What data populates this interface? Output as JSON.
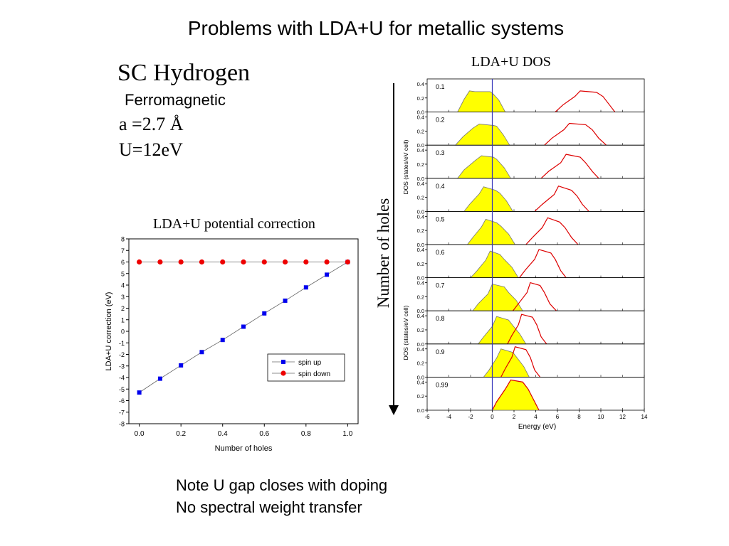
{
  "slide": {
    "title": "Problems with LDA+U for metallic systems",
    "system_name": "SC Hydrogen",
    "magnetism": "Ferromagnetic",
    "lattice": "a =2.7 Å",
    "u_value": "U=12eV",
    "holes_arrow_label": "Number of holes",
    "notes": [
      "Note U gap closes with doping",
      "No spectral weight transfer"
    ]
  },
  "chart_data": [
    {
      "type": "scatter",
      "title": "LDA+U potential correction",
      "xlabel": "Number of holes",
      "ylabel": "LDA+U correction (eV)",
      "xlim": [
        -0.05,
        1.05
      ],
      "ylim": [
        -8,
        8
      ],
      "xticks": [
        "0.0",
        "0.2",
        "0.4",
        "0.6",
        "0.8",
        "1.0"
      ],
      "yticks": [
        "-8",
        "-7",
        "-6",
        "-5",
        "-4",
        "-3",
        "-2",
        "-1",
        "0",
        "1",
        "2",
        "3",
        "4",
        "5",
        "6",
        "7",
        "8"
      ],
      "x": [
        0.0,
        0.1,
        0.2,
        0.3,
        0.4,
        0.5,
        0.6,
        0.7,
        0.8,
        0.9,
        1.0
      ],
      "series": [
        {
          "name": "spin up",
          "color": "#0000ee",
          "marker": "square",
          "values": [
            -5.3,
            -4.1,
            -2.95,
            -1.8,
            -0.75,
            0.4,
            1.55,
            2.65,
            3.8,
            4.9,
            6.0
          ]
        },
        {
          "name": "spin down",
          "color": "#ee0000",
          "marker": "circle",
          "values": [
            6.0,
            6.0,
            6.0,
            6.0,
            6.0,
            6.0,
            6.0,
            6.0,
            6.0,
            6.0,
            6.0
          ]
        }
      ],
      "legend": "lower-right"
    },
    {
      "type": "area",
      "title": "LDA+U DOS",
      "xlabel": "Energy (eV)",
      "ylabel": "DOS (states/eV cell)",
      "xlim": [
        -6,
        14
      ],
      "ylim": [
        0,
        0.45
      ],
      "xticks": [
        -6,
        -4,
        -2,
        0,
        2,
        4,
        6,
        8,
        10,
        12,
        14
      ],
      "yticks": [
        "0.0",
        "0.2",
        "0.4"
      ],
      "fermi_level": 0,
      "colors": {
        "occupied_fill": "#ffff00",
        "unoccupied_line": "#dd0000",
        "fermi_line": "#3333bb"
      },
      "panels": [
        {
          "label": "0.1",
          "occupied": [
            [
              -3.2,
              0
            ],
            [
              -2.6,
              0.18
            ],
            [
              -2.1,
              0.3
            ],
            [
              -1.6,
              0.29
            ],
            [
              -0.2,
              0.29
            ],
            [
              0,
              0.27
            ],
            [
              0.6,
              0.17
            ],
            [
              1.2,
              0
            ]
          ],
          "unoccupied": [
            [
              5.8,
              0
            ],
            [
              6.5,
              0.1
            ],
            [
              7.6,
              0.22
            ],
            [
              8.1,
              0.3
            ],
            [
              9.6,
              0.28
            ],
            [
              10.2,
              0.22
            ],
            [
              10.8,
              0.1
            ],
            [
              11.3,
              0
            ]
          ]
        },
        {
          "label": "0.2",
          "occupied": [
            [
              -3.4,
              0
            ],
            [
              -2.7,
              0.12
            ],
            [
              -1.8,
              0.24
            ],
            [
              -1.2,
              0.3
            ],
            [
              0.1,
              0.28
            ],
            [
              0.4,
              0.27
            ],
            [
              1,
              0.15
            ],
            [
              1.6,
              0
            ]
          ],
          "unoccupied": [
            [
              4.8,
              0
            ],
            [
              5.5,
              0.1
            ],
            [
              6.6,
              0.22
            ],
            [
              7.1,
              0.31
            ],
            [
              8.6,
              0.29
            ],
            [
              9.2,
              0.22
            ],
            [
              9.8,
              0.1
            ],
            [
              10.5,
              0
            ]
          ]
        },
        {
          "label": "0.3",
          "occupied": [
            [
              -3.2,
              0
            ],
            [
              -2.6,
              0.12
            ],
            [
              -1.6,
              0.25
            ],
            [
              -1,
              0.32
            ],
            [
              0.1,
              0.3
            ],
            [
              0.4,
              0.27
            ],
            [
              1.1,
              0.15
            ],
            [
              1.7,
              0
            ]
          ],
          "unoccupied": [
            [
              4.5,
              0
            ],
            [
              5.2,
              0.1
            ],
            [
              6.3,
              0.22
            ],
            [
              6.8,
              0.34
            ],
            [
              8.1,
              0.3
            ],
            [
              8.6,
              0.22
            ],
            [
              9.2,
              0.1
            ],
            [
              9.8,
              0
            ]
          ]
        },
        {
          "label": "0.4",
          "occupied": [
            [
              -2.6,
              0
            ],
            [
              -2.1,
              0.1
            ],
            [
              -1.2,
              0.25
            ],
            [
              -0.8,
              0.35
            ],
            [
              0.3,
              0.3
            ],
            [
              0.7,
              0.26
            ],
            [
              1.3,
              0.15
            ],
            [
              1.9,
              0
            ]
          ],
          "unoccupied": [
            [
              3.9,
              0
            ],
            [
              4.6,
              0.1
            ],
            [
              5.7,
              0.24
            ],
            [
              6.1,
              0.36
            ],
            [
              7.3,
              0.3
            ],
            [
              7.8,
              0.22
            ],
            [
              8.3,
              0.1
            ],
            [
              8.9,
              0
            ]
          ]
        },
        {
          "label": "0.5",
          "occupied": [
            [
              -2.3,
              0
            ],
            [
              -1.8,
              0.1
            ],
            [
              -1,
              0.25
            ],
            [
              -0.6,
              0.36
            ],
            [
              0.4,
              0.31
            ],
            [
              0.8,
              0.26
            ],
            [
              1.5,
              0.15
            ],
            [
              2.1,
              0
            ]
          ],
          "unoccupied": [
            [
              3.1,
              0
            ],
            [
              3.7,
              0.1
            ],
            [
              4.6,
              0.24
            ],
            [
              5.1,
              0.38
            ],
            [
              6.2,
              0.32
            ],
            [
              6.7,
              0.24
            ],
            [
              7.3,
              0.1
            ],
            [
              7.9,
              0
            ]
          ]
        },
        {
          "label": "0.6",
          "occupied": [
            [
              -2,
              0
            ],
            [
              -1.4,
              0.1
            ],
            [
              -0.6,
              0.25
            ],
            [
              -0.2,
              0.38
            ],
            [
              0.7,
              0.33
            ],
            [
              1.1,
              0.26
            ],
            [
              1.8,
              0.15
            ],
            [
              2.4,
              0
            ]
          ],
          "unoccupied": [
            [
              2.5,
              0
            ],
            [
              3.1,
              0.12
            ],
            [
              3.9,
              0.26
            ],
            [
              4.3,
              0.4
            ],
            [
              5.4,
              0.35
            ],
            [
              5.8,
              0.26
            ],
            [
              6.3,
              0.1
            ],
            [
              6.8,
              0
            ]
          ]
        },
        {
          "label": "0.7",
          "occupied": [
            [
              -1.8,
              0
            ],
            [
              -1.3,
              0.1
            ],
            [
              -0.4,
              0.24
            ],
            [
              0,
              0.38
            ],
            [
              1.1,
              0.34
            ],
            [
              1.5,
              0.26
            ],
            [
              2.2,
              0.15
            ],
            [
              2.8,
              0
            ]
          ],
          "unoccupied": [
            [
              1.9,
              0
            ],
            [
              2.5,
              0.12
            ],
            [
              3.2,
              0.26
            ],
            [
              3.5,
              0.4
            ],
            [
              4.4,
              0.36
            ],
            [
              4.8,
              0.26
            ],
            [
              5.3,
              0.1
            ],
            [
              5.9,
              0
            ]
          ]
        },
        {
          "label": "0.8",
          "occupied": [
            [
              -1.3,
              0
            ],
            [
              -0.8,
              0.1
            ],
            [
              0,
              0.25
            ],
            [
              0.4,
              0.39
            ],
            [
              1.5,
              0.34
            ],
            [
              1.9,
              0.26
            ],
            [
              2.5,
              0.15
            ],
            [
              3.1,
              0
            ]
          ],
          "unoccupied": [
            [
              1.4,
              0
            ],
            [
              1.8,
              0.12
            ],
            [
              2.4,
              0.27
            ],
            [
              2.7,
              0.42
            ],
            [
              3.7,
              0.38
            ],
            [
              4.1,
              0.27
            ],
            [
              4.5,
              0.1
            ],
            [
              5,
              0
            ]
          ]
        },
        {
          "label": "0.9",
          "occupied": [
            [
              -0.8,
              0
            ],
            [
              -0.3,
              0.1
            ],
            [
              0.4,
              0.27
            ],
            [
              0.8,
              0.4
            ],
            [
              1.9,
              0.35
            ],
            [
              2.3,
              0.27
            ],
            [
              2.9,
              0.15
            ],
            [
              3.4,
              0
            ]
          ],
          "unoccupied": [
            [
              0.8,
              0
            ],
            [
              1.2,
              0.12
            ],
            [
              1.8,
              0.28
            ],
            [
              2.1,
              0.43
            ],
            [
              3.1,
              0.39
            ],
            [
              3.5,
              0.28
            ],
            [
              3.9,
              0.1
            ],
            [
              4.4,
              0
            ]
          ]
        },
        {
          "label": "0.99",
          "occupied": [
            [
              0,
              0
            ],
            [
              0.4,
              0.12
            ],
            [
              1.2,
              0.3
            ],
            [
              1.7,
              0.43
            ],
            [
              2.8,
              0.4
            ],
            [
              3.3,
              0.3
            ],
            [
              3.9,
              0.12
            ],
            [
              4.3,
              0
            ]
          ],
          "unoccupied": [
            [
              0,
              0
            ],
            [
              0.4,
              0.12
            ],
            [
              1.2,
              0.3
            ],
            [
              1.7,
              0.43
            ],
            [
              2.8,
              0.4
            ],
            [
              3.3,
              0.3
            ],
            [
              3.9,
              0.12
            ],
            [
              4.3,
              0
            ]
          ]
        }
      ]
    }
  ]
}
